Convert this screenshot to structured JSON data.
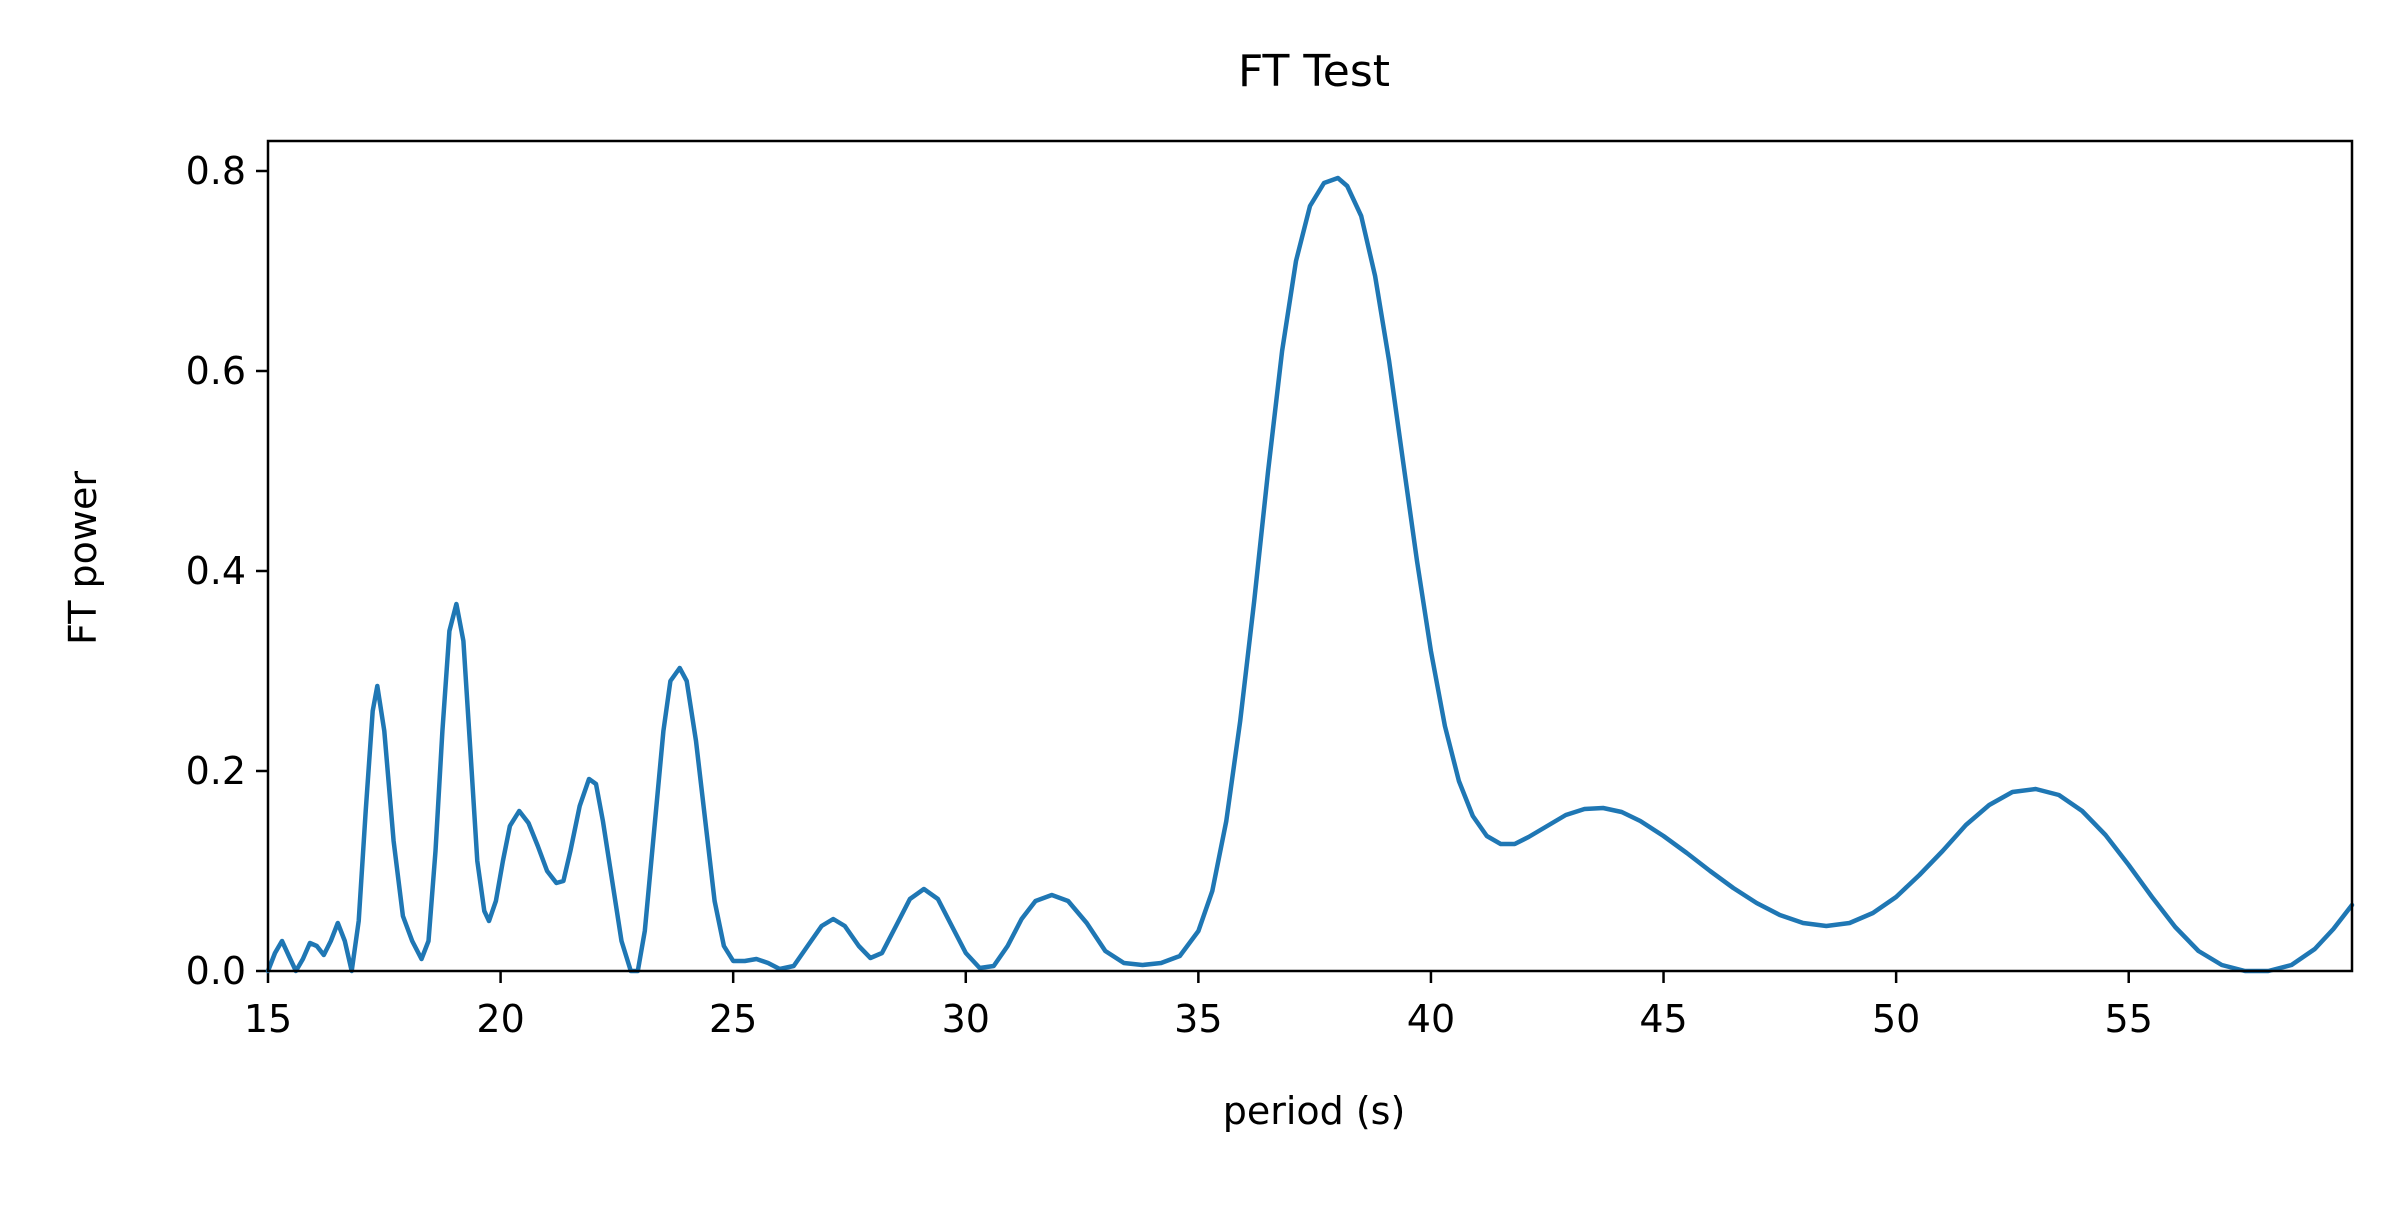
{
  "chart_data": {
    "type": "line",
    "title": "FT Test",
    "xlabel": "period (s)",
    "ylabel": "FT power",
    "xlim": [
      15,
      59.8
    ],
    "ylim": [
      0,
      0.83
    ],
    "x_ticks": [
      15,
      20,
      25,
      30,
      35,
      40,
      45,
      50,
      55
    ],
    "x_tick_labels": [
      "15",
      "20",
      "25",
      "30",
      "35",
      "40",
      "45",
      "50",
      "55"
    ],
    "y_ticks": [
      0.0,
      0.2,
      0.4,
      0.6,
      0.8
    ],
    "y_tick_labels": [
      "0.0",
      "0.2",
      "0.4",
      "0.6",
      "0.8"
    ],
    "grid": false,
    "legend": false,
    "series": [
      {
        "color": "#1f77b4",
        "points": [
          [
            15.0,
            0.0
          ],
          [
            15.15,
            0.018
          ],
          [
            15.3,
            0.03
          ],
          [
            15.45,
            0.015
          ],
          [
            15.6,
            0.0
          ],
          [
            15.75,
            0.012
          ],
          [
            15.9,
            0.028
          ],
          [
            16.05,
            0.025
          ],
          [
            16.2,
            0.016
          ],
          [
            16.35,
            0.03
          ],
          [
            16.5,
            0.048
          ],
          [
            16.65,
            0.03
          ],
          [
            16.8,
            0.0
          ],
          [
            16.95,
            0.05
          ],
          [
            17.1,
            0.16
          ],
          [
            17.25,
            0.26
          ],
          [
            17.35,
            0.285
          ],
          [
            17.5,
            0.24
          ],
          [
            17.7,
            0.13
          ],
          [
            17.9,
            0.055
          ],
          [
            18.1,
            0.03
          ],
          [
            18.3,
            0.012
          ],
          [
            18.45,
            0.03
          ],
          [
            18.6,
            0.12
          ],
          [
            18.75,
            0.24
          ],
          [
            18.9,
            0.34
          ],
          [
            19.05,
            0.367
          ],
          [
            19.2,
            0.33
          ],
          [
            19.35,
            0.22
          ],
          [
            19.5,
            0.11
          ],
          [
            19.65,
            0.06
          ],
          [
            19.75,
            0.05
          ],
          [
            19.9,
            0.07
          ],
          [
            20.05,
            0.11
          ],
          [
            20.2,
            0.145
          ],
          [
            20.4,
            0.16
          ],
          [
            20.6,
            0.148
          ],
          [
            20.8,
            0.125
          ],
          [
            21.0,
            0.1
          ],
          [
            21.2,
            0.088
          ],
          [
            21.35,
            0.09
          ],
          [
            21.5,
            0.12
          ],
          [
            21.7,
            0.165
          ],
          [
            21.9,
            0.192
          ],
          [
            22.05,
            0.187
          ],
          [
            22.2,
            0.15
          ],
          [
            22.4,
            0.09
          ],
          [
            22.6,
            0.03
          ],
          [
            22.8,
            0.0
          ],
          [
            22.95,
            0.0
          ],
          [
            23.1,
            0.04
          ],
          [
            23.3,
            0.14
          ],
          [
            23.5,
            0.24
          ],
          [
            23.65,
            0.29
          ],
          [
            23.85,
            0.303
          ],
          [
            24.0,
            0.29
          ],
          [
            24.2,
            0.23
          ],
          [
            24.4,
            0.15
          ],
          [
            24.6,
            0.07
          ],
          [
            24.8,
            0.025
          ],
          [
            25.0,
            0.01
          ],
          [
            25.25,
            0.01
          ],
          [
            25.5,
            0.012
          ],
          [
            25.75,
            0.008
          ],
          [
            26.0,
            0.002
          ],
          [
            26.3,
            0.005
          ],
          [
            26.6,
            0.025
          ],
          [
            26.9,
            0.045
          ],
          [
            27.15,
            0.052
          ],
          [
            27.4,
            0.045
          ],
          [
            27.7,
            0.025
          ],
          [
            27.95,
            0.013
          ],
          [
            28.2,
            0.018
          ],
          [
            28.5,
            0.045
          ],
          [
            28.8,
            0.072
          ],
          [
            29.1,
            0.082
          ],
          [
            29.4,
            0.072
          ],
          [
            29.7,
            0.045
          ],
          [
            30.0,
            0.018
          ],
          [
            30.3,
            0.003
          ],
          [
            30.6,
            0.005
          ],
          [
            30.9,
            0.025
          ],
          [
            31.2,
            0.052
          ],
          [
            31.5,
            0.07
          ],
          [
            31.85,
            0.076
          ],
          [
            32.2,
            0.07
          ],
          [
            32.6,
            0.048
          ],
          [
            33.0,
            0.02
          ],
          [
            33.4,
            0.008
          ],
          [
            33.8,
            0.006
          ],
          [
            34.2,
            0.008
          ],
          [
            34.6,
            0.015
          ],
          [
            35.0,
            0.04
          ],
          [
            35.3,
            0.08
          ],
          [
            35.6,
            0.15
          ],
          [
            35.9,
            0.25
          ],
          [
            36.2,
            0.37
          ],
          [
            36.5,
            0.5
          ],
          [
            36.8,
            0.62
          ],
          [
            37.1,
            0.71
          ],
          [
            37.4,
            0.765
          ],
          [
            37.7,
            0.788
          ],
          [
            38.0,
            0.793
          ],
          [
            38.2,
            0.785
          ],
          [
            38.5,
            0.755
          ],
          [
            38.8,
            0.695
          ],
          [
            39.1,
            0.61
          ],
          [
            39.4,
            0.51
          ],
          [
            39.7,
            0.41
          ],
          [
            40.0,
            0.32
          ],
          [
            40.3,
            0.245
          ],
          [
            40.6,
            0.19
          ],
          [
            40.9,
            0.155
          ],
          [
            41.2,
            0.135
          ],
          [
            41.5,
            0.127
          ],
          [
            41.8,
            0.127
          ],
          [
            42.1,
            0.134
          ],
          [
            42.5,
            0.145
          ],
          [
            42.9,
            0.156
          ],
          [
            43.3,
            0.162
          ],
          [
            43.7,
            0.163
          ],
          [
            44.1,
            0.159
          ],
          [
            44.5,
            0.15
          ],
          [
            45.0,
            0.135
          ],
          [
            45.5,
            0.118
          ],
          [
            46.0,
            0.1
          ],
          [
            46.5,
            0.083
          ],
          [
            47.0,
            0.068
          ],
          [
            47.5,
            0.056
          ],
          [
            48.0,
            0.048
          ],
          [
            48.5,
            0.045
          ],
          [
            49.0,
            0.048
          ],
          [
            49.5,
            0.058
          ],
          [
            50.0,
            0.074
          ],
          [
            50.5,
            0.096
          ],
          [
            51.0,
            0.12
          ],
          [
            51.5,
            0.146
          ],
          [
            52.0,
            0.166
          ],
          [
            52.5,
            0.179
          ],
          [
            53.0,
            0.182
          ],
          [
            53.5,
            0.176
          ],
          [
            54.0,
            0.16
          ],
          [
            54.5,
            0.136
          ],
          [
            55.0,
            0.106
          ],
          [
            55.5,
            0.074
          ],
          [
            56.0,
            0.044
          ],
          [
            56.5,
            0.02
          ],
          [
            57.0,
            0.006
          ],
          [
            57.5,
            0.0
          ],
          [
            58.0,
            0.0
          ],
          [
            58.5,
            0.006
          ],
          [
            59.0,
            0.022
          ],
          [
            59.4,
            0.042
          ],
          [
            59.8,
            0.066
          ]
        ]
      }
    ]
  }
}
